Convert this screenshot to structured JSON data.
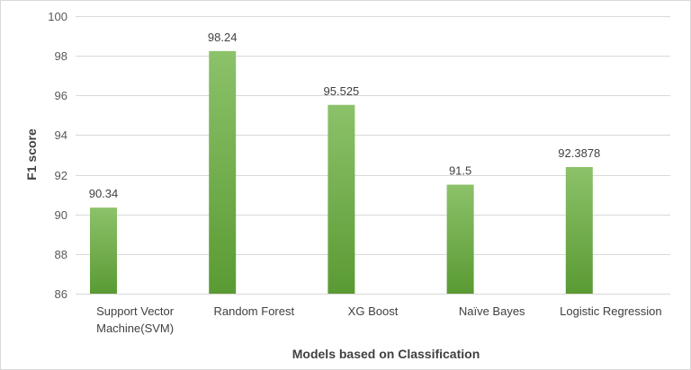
{
  "chart_data": {
    "type": "bar",
    "title": "",
    "xlabel": "Models based on Classification",
    "ylabel": "F1 score",
    "categories": [
      [
        "Support Vector",
        "Machine(SVM)"
      ],
      [
        "Random Forest"
      ],
      [
        "XG Boost"
      ],
      [
        "Naïve Bayes"
      ],
      [
        "Logistic Regression"
      ]
    ],
    "values": [
      90.34,
      98.24,
      95.525,
      91.5,
      92.3878
    ],
    "data_labels": [
      "90.34",
      "98.24",
      "95.525",
      "91.5",
      "92.3878"
    ],
    "ylim": [
      86,
      100
    ],
    "yticks": [
      86,
      88,
      90,
      92,
      94,
      96,
      98,
      100
    ],
    "grid": true,
    "legend": "none",
    "colors": {
      "bar_top": "#8cc26a",
      "bar_bottom": "#5a9a33",
      "grid": "#d9d9d9",
      "text": "#404040"
    }
  }
}
